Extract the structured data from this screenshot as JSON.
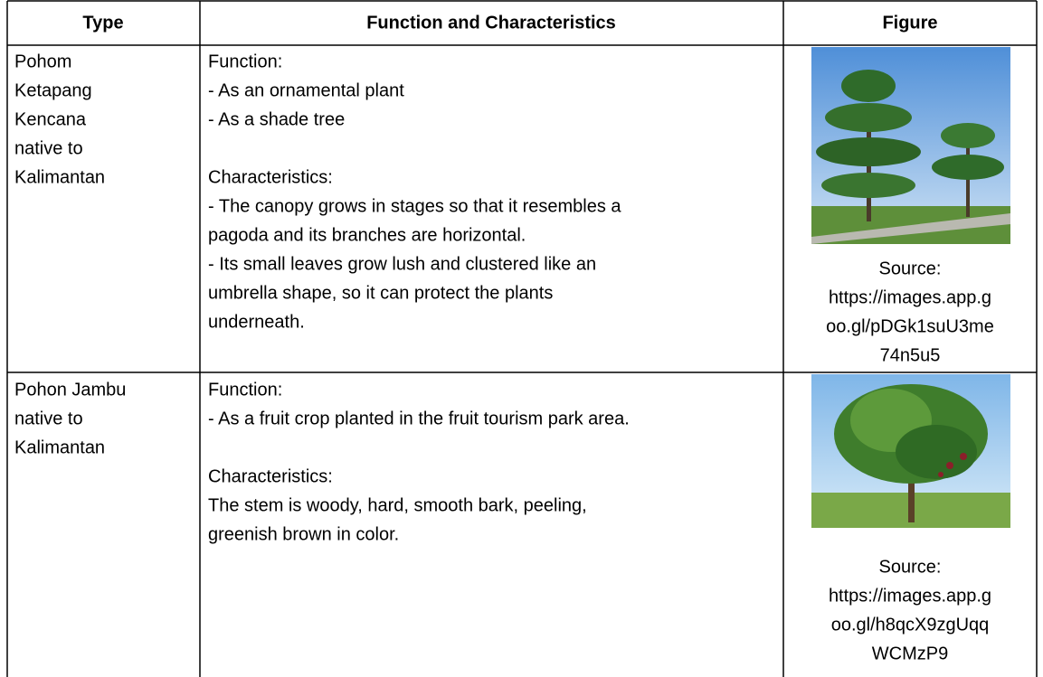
{
  "table": {
    "headers": [
      "Type",
      "Function and Characteristics",
      "Figure"
    ],
    "rows": [
      {
        "type_lines": [
          "Pohom",
          "Ketapang",
          "Kencana",
          "native to",
          "Kalimantan"
        ],
        "paragraphs": [
          [
            "Function:",
            "- As an ornamental plant",
            "- As a shade tree"
          ],
          [
            "Characteristics:",
            "- The canopy grows in stages so that it resembles a",
            "pagoda and its branches are horizontal.",
            "- Its small leaves grow lush and clustered like an",
            "umbrella shape, so it can protect the plants",
            "underneath."
          ]
        ],
        "source_lines": [
          "Source:",
          "https://images.app.g",
          "oo.gl/pDGk1suU3me",
          "74n5u5"
        ]
      },
      {
        "type_lines": [
          "Pohon Jambu",
          "native to",
          "Kalimantan"
        ],
        "paragraphs": [
          [
            "Function:",
            "- As a fruit crop planted in the fruit tourism park area."
          ],
          [
            "Characteristics:",
            "The stem is woody, hard, smooth bark, peeling,",
            "greenish brown in color."
          ]
        ],
        "source_lines": [
          "Source:",
          "https://images.app.g",
          "oo.gl/h8qcX9zgUqq",
          "WCMzP9"
        ]
      }
    ]
  }
}
